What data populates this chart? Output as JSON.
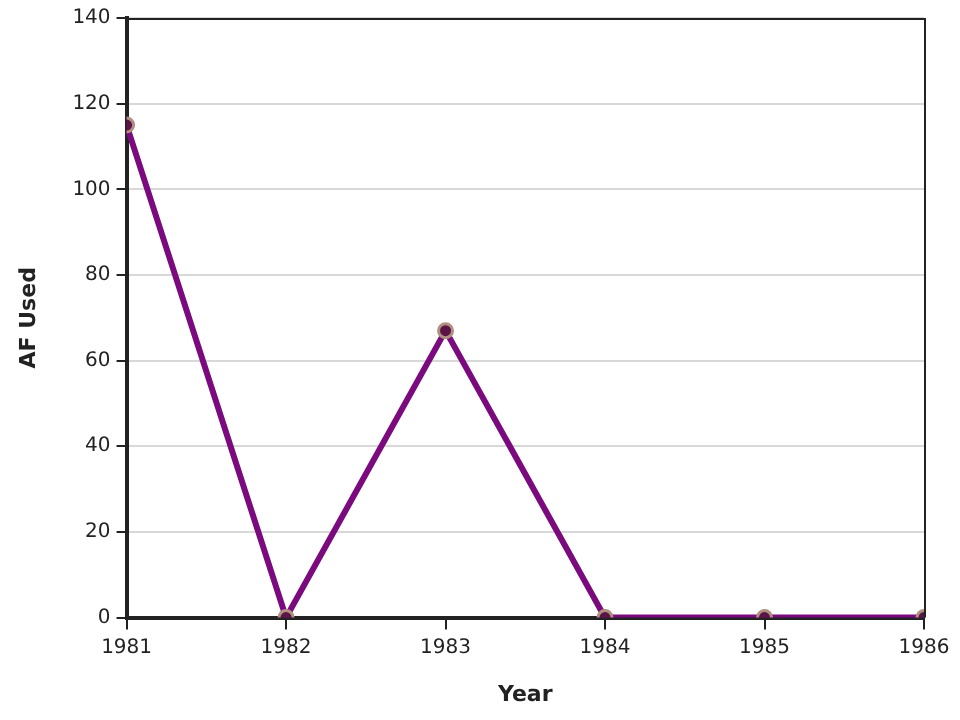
{
  "chart_data": {
    "type": "line",
    "xlabel": "Year",
    "ylabel": "AF Used",
    "x": [
      1981,
      1982,
      1983,
      1984,
      1985,
      1986
    ],
    "series": [
      {
        "color": "#7a0a7e",
        "values": [
          115,
          0,
          67,
          0,
          0,
          0
        ]
      }
    ],
    "xlim": [
      1981,
      1986
    ],
    "xticks": [
      1981,
      1982,
      1983,
      1984,
      1985,
      1986
    ],
    "ylim": [
      0,
      140
    ],
    "yticks": [
      0,
      20,
      40,
      60,
      80,
      100,
      120,
      140
    ],
    "grid": "y",
    "legend": false,
    "marker": "circle",
    "line_style": "solid"
  }
}
